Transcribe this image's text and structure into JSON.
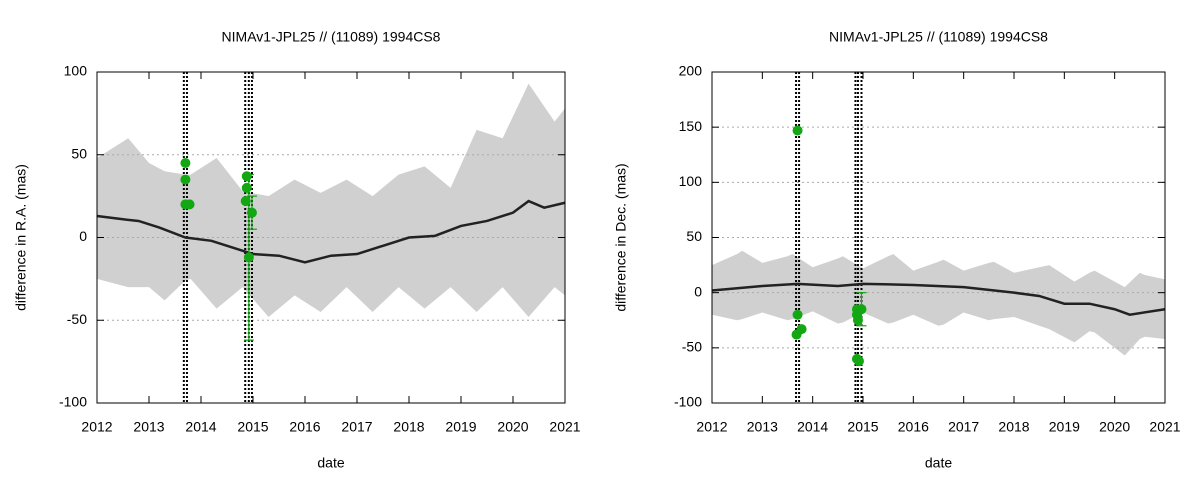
{
  "chart_data": [
    {
      "type": "line-band",
      "title": "NIMAv1-JPL25 // (11089) 1994CS8",
      "xlabel": "date",
      "ylabel": "difference in R.A. (mas)",
      "xlim": [
        2012,
        2021
      ],
      "xticks": [
        2012,
        2013,
        2014,
        2015,
        2016,
        2017,
        2018,
        2019,
        2020,
        2021
      ],
      "ylim": [
        -100,
        100
      ],
      "yticks": [
        -100,
        -50,
        0,
        50,
        100
      ],
      "grid": true,
      "band": {
        "color": "#d0d0d0",
        "x": [
          2012,
          2012.6,
          2013,
          2013.3,
          2013.7,
          2013.8,
          2014.3,
          2014.8,
          2015.3,
          2015.8,
          2016.3,
          2016.8,
          2017.3,
          2017.8,
          2018.3,
          2018.8,
          2019.3,
          2019.8,
          2020.3,
          2020.8,
          2021
        ],
        "high": [
          48,
          60,
          45,
          40,
          38,
          38,
          48,
          28,
          25,
          35,
          27,
          35,
          25,
          38,
          43,
          30,
          65,
          60,
          93,
          70,
          78
        ],
        "low": [
          -25,
          -30,
          -30,
          -38,
          -26,
          -25,
          -43,
          -30,
          -48,
          -35,
          -45,
          -30,
          -45,
          -30,
          -43,
          -30,
          -45,
          -30,
          -48,
          -30,
          -35
        ]
      },
      "line": {
        "color": "#222222",
        "x": [
          2012,
          2012.5,
          2012.8,
          2013.2,
          2013.7,
          2014.2,
          2014.6,
          2015,
          2015.5,
          2016,
          2016.5,
          2017,
          2017.5,
          2018,
          2018.5,
          2019,
          2019.5,
          2020,
          2020.3,
          2020.6,
          2021
        ],
        "values": [
          13,
          11,
          10,
          6,
          0,
          -2,
          -6,
          -10,
          -11,
          -15,
          -11,
          -10,
          -5,
          0,
          1,
          7,
          10,
          15,
          22,
          18,
          21
        ]
      },
      "points": {
        "color": "#13a813",
        "x": [
          2013.7,
          2013.7,
          2013.7,
          2013.78,
          2014.88,
          2014.88,
          2014.86,
          2014.92,
          2014.98
        ],
        "values": [
          45,
          35,
          20,
          20,
          37,
          30,
          22,
          -12,
          15
        ],
        "errors": [
          null,
          null,
          null,
          null,
          null,
          null,
          null,
          50,
          10
        ]
      },
      "vlines": [
        2013.67,
        2013.73,
        2014.85,
        2014.92,
        2014.98
      ]
    },
    {
      "type": "line-band",
      "title": "NIMAv1-JPL25 // (11089) 1994CS8",
      "xlabel": "date",
      "ylabel": "difference in Dec. (mas)",
      "xlim": [
        2012,
        2021
      ],
      "xticks": [
        2012,
        2013,
        2014,
        2015,
        2016,
        2017,
        2018,
        2019,
        2020,
        2021
      ],
      "ylim": [
        -100,
        200
      ],
      "yticks": [
        -100,
        -50,
        0,
        50,
        100,
        150,
        200
      ],
      "grid": true,
      "band": {
        "color": "#d0d0d0",
        "x": [
          2012,
          2012.5,
          2012.6,
          2013,
          2013.5,
          2013.6,
          2014,
          2014.5,
          2014.6,
          2015,
          2015.5,
          2015.6,
          2016,
          2016.5,
          2016.6,
          2017,
          2017.5,
          2017.6,
          2018,
          2018.5,
          2018.7,
          2019.2,
          2019.5,
          2019.6,
          2020.2,
          2020.5,
          2020.6,
          2021
        ],
        "high": [
          25,
          35,
          38,
          27,
          33,
          35,
          23,
          31,
          33,
          22,
          33,
          35,
          20,
          28,
          30,
          20,
          27,
          28,
          18,
          23,
          25,
          10,
          18,
          20,
          5,
          18,
          16,
          12
        ],
        "low": [
          -20,
          -25,
          -24,
          -18,
          -25,
          -24,
          -17,
          -28,
          -27,
          -18,
          -28,
          -27,
          -20,
          -30,
          -29,
          -18,
          -25,
          -24,
          -22,
          -30,
          -33,
          -45,
          -35,
          -36,
          -57,
          -42,
          -40,
          -42
        ]
      },
      "line": {
        "color": "#222222",
        "x": [
          2012,
          2013,
          2013.7,
          2014.5,
          2015,
          2016,
          2017,
          2018,
          2018.5,
          2019,
          2019.5,
          2020,
          2020.3,
          2021
        ],
        "values": [
          2,
          6,
          8,
          6,
          8,
          7,
          5,
          0,
          -3,
          -10,
          -10,
          -15,
          -20,
          -15
        ]
      },
      "points": {
        "color": "#13a813",
        "x": [
          2013.7,
          2013.7,
          2013.68,
          2013.78,
          2014.88,
          2014.88,
          2014.9,
          2014.88,
          2014.92,
          2014.97
        ],
        "values": [
          147,
          -20,
          -38,
          -33,
          -15,
          -20,
          -25,
          -60,
          -62,
          -15
        ],
        "errors": [
          null,
          null,
          null,
          null,
          null,
          null,
          null,
          null,
          null,
          15
        ]
      },
      "vlines": [
        2013.67,
        2013.73,
        2014.85,
        2014.9,
        2014.97
      ]
    }
  ]
}
